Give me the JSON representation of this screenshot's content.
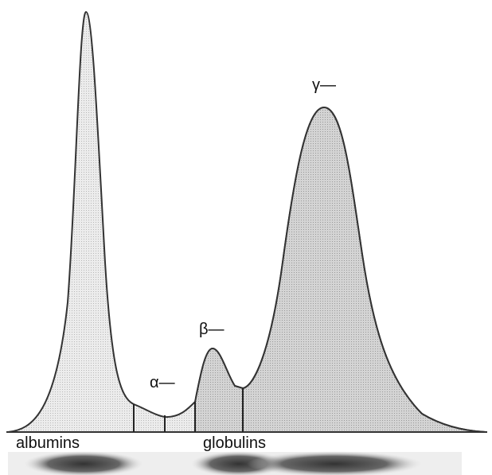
{
  "peaks": [
    {
      "label": "α—"
    },
    {
      "label": "β—"
    },
    {
      "label": "γ—"
    }
  ],
  "bands": [
    {
      "label": "albumins"
    },
    {
      "label": "globulins"
    }
  ]
}
